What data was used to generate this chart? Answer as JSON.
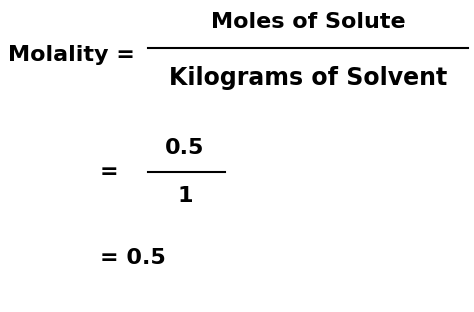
{
  "bg_color": "#ffffff",
  "text_color": "#000000",
  "fig_width": 4.74,
  "fig_height": 3.12,
  "dpi": 100,
  "molality_label": "Molality = ",
  "numerator": "Moles of Solute",
  "denominator": "Kilograms of Solvent",
  "eq2_num": "0.5",
  "eq2_den": "1",
  "eq3": "= 0.5",
  "font_size": 16,
  "font_weight": "bold"
}
